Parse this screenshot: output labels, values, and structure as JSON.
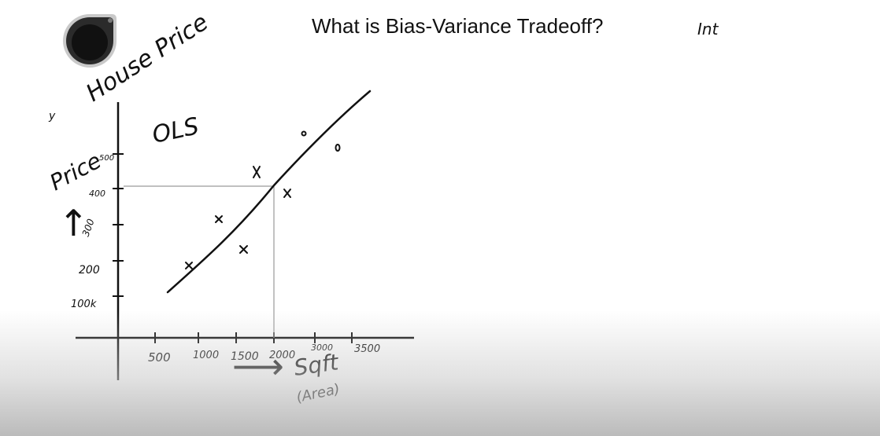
{
  "title": "What is Bias-Variance Tradeoff?",
  "notes": {
    "house_price": "House Price",
    "ols": "OLS",
    "corner": "Int",
    "margin_mark": "y"
  },
  "axes": {
    "y_label": "Price",
    "y_arrow": "↑",
    "x_label": "Sqft",
    "x_sublabel": "(Area)",
    "x_arrow": "⟶"
  },
  "ticks": {
    "x": [
      "500",
      "1000",
      "1500",
      "2000",
      "3000",
      "3500"
    ],
    "y": [
      "100k",
      "200",
      "300",
      "400",
      "500"
    ]
  },
  "colors": {
    "ink": "#111111",
    "guide": "#9a9a9a",
    "logo": "#2b2b2b"
  }
}
